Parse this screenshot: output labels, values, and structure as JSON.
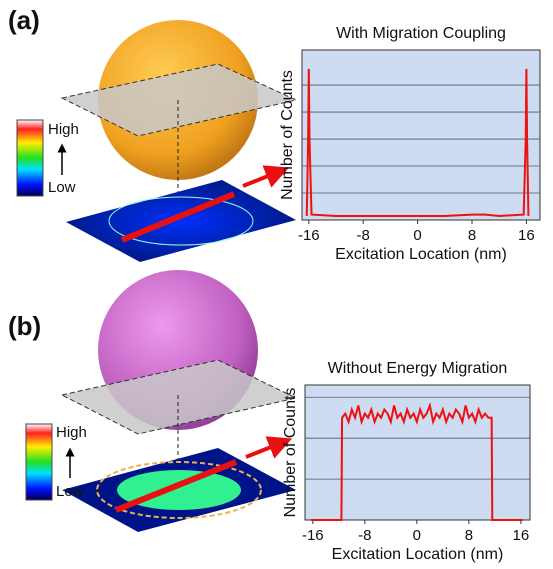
{
  "chart_data": [
    {
      "type": "line",
      "panel_label": "(a)",
      "colorbar_high": "High",
      "colorbar_low": "Low",
      "title": "With Migration Coupling",
      "xlabel": "Excitation Location (nm)",
      "ylabel": "Number of Counts",
      "color": "#ee1111",
      "background": "#cddcf0",
      "grid": true,
      "x": [
        -16.3,
        -16.1,
        -16,
        -15.9,
        -15.6,
        -12,
        -8,
        -4,
        0,
        4,
        8,
        10,
        12,
        15.6,
        15.9,
        16,
        16.1,
        16.3
      ],
      "values": [
        0.15,
        3,
        5.6,
        3,
        0.2,
        0.15,
        0.15,
        0.15,
        0.15,
        0.15,
        0.2,
        0.2,
        0.15,
        0.2,
        3,
        5.6,
        3,
        0.15
      ],
      "xlim": [
        -17,
        18
      ],
      "xticks": [
        -16,
        -8,
        0,
        8,
        16
      ],
      "ylim": [
        0,
        6.3
      ],
      "ygrid": [
        1,
        2,
        3,
        4,
        5
      ]
    },
    {
      "type": "line",
      "panel_label": "(b)",
      "colorbar_high": "High",
      "colorbar_low": "Low",
      "title": "Without Energy Migration",
      "xlabel": "Excitation Location (nm)",
      "ylabel": "Number of Counts",
      "color": "#ee1111",
      "background": "#cddcf0",
      "grid": true,
      "x": [
        -16.3,
        -11.6,
        -11.5,
        -11,
        -10.5,
        -10,
        -9.5,
        -9,
        -8.5,
        -8,
        -7.5,
        -7,
        -6.5,
        -6,
        -5.5,
        -5,
        -4.5,
        -4,
        -3.5,
        -3,
        -2.5,
        -2,
        -1.5,
        -1,
        -0.5,
        0,
        0.5,
        1,
        1.5,
        2,
        2.5,
        3,
        3.5,
        4,
        4.5,
        5,
        5.5,
        6,
        6.5,
        7,
        7.5,
        8,
        8.5,
        9,
        9.5,
        10,
        10.5,
        11,
        11.5,
        11.6,
        16.3
      ],
      "values": [
        0,
        0,
        2.5,
        2.6,
        2.4,
        2.7,
        2.5,
        2.8,
        2.4,
        2.6,
        2.5,
        2.7,
        2.4,
        2.6,
        2.5,
        2.7,
        2.6,
        2.4,
        2.8,
        2.5,
        2.6,
        2.4,
        2.7,
        2.5,
        2.6,
        2.4,
        2.7,
        2.5,
        2.6,
        2.8,
        2.4,
        2.6,
        2.5,
        2.7,
        2.4,
        2.6,
        2.5,
        2.7,
        2.6,
        2.4,
        2.8,
        2.5,
        2.6,
        2.4,
        2.7,
        2.5,
        2.6,
        2.5,
        2.5,
        0,
        0
      ],
      "xlim": [
        -17.2,
        17.4
      ],
      "xticks": [
        -16,
        -8,
        0,
        8,
        16
      ],
      "ylim": [
        0,
        3.3
      ],
      "ygrid": [
        1,
        2,
        3
      ]
    }
  ]
}
